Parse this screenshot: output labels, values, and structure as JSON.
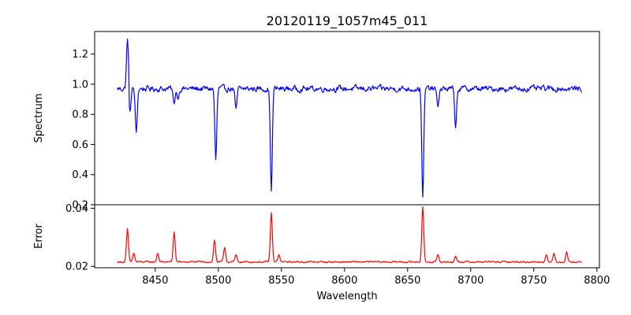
{
  "chart_data": [
    {
      "type": "line",
      "panel": "top",
      "title": "20120119_1057m45_011",
      "xlabel": "",
      "ylabel": "Spectrum",
      "xlim": [
        8402,
        8802
      ],
      "ylim": [
        0.2,
        1.35
      ],
      "yticks": [
        0.2,
        0.4,
        0.6,
        0.8,
        1.0,
        1.2
      ],
      "ytick_labels": [
        "0.2",
        "0.4",
        "0.6",
        "0.8",
        "1.0",
        "1.2"
      ],
      "grid": false,
      "series": [
        {
          "name": "Spectrum",
          "color": "#0000ff",
          "baseline": 0.97,
          "noise": 0.035,
          "x_range": [
            8420,
            8788
          ],
          "features": [
            {
              "x": 8428,
              "y": 1.3
            },
            {
              "x": 8430,
              "y": 0.82
            },
            {
              "x": 8435,
              "y": 0.68
            },
            {
              "x": 8465,
              "y": 0.87
            },
            {
              "x": 8468,
              "y": 0.9
            },
            {
              "x": 8498,
              "y": 0.5
            },
            {
              "x": 8514,
              "y": 0.84
            },
            {
              "x": 8542,
              "y": 0.29
            },
            {
              "x": 8662,
              "y": 0.25
            },
            {
              "x": 8674,
              "y": 0.85
            },
            {
              "x": 8688,
              "y": 0.71
            }
          ]
        }
      ]
    },
    {
      "type": "line",
      "panel": "bottom",
      "title": "",
      "xlabel": "Wavelength",
      "ylabel": "Error",
      "xlim": [
        8402,
        8802
      ],
      "ylim": [
        0.0195,
        0.0412
      ],
      "yticks": [
        0.02,
        0.04
      ],
      "ytick_labels": [
        "0.02",
        "0.04"
      ],
      "xticks": [
        8450,
        8500,
        8550,
        8600,
        8650,
        8700,
        8750,
        8800
      ],
      "xtick_labels": [
        "8450",
        "8500",
        "8550",
        "8600",
        "8650",
        "8700",
        "8750",
        "8800"
      ],
      "grid": false,
      "series": [
        {
          "name": "Error",
          "color": "#ff0000",
          "baseline": 0.0215,
          "noise": 0.0005,
          "x_range": [
            8420,
            8788
          ],
          "features": [
            {
              "x": 8428,
              "y": 0.033
            },
            {
              "x": 8433,
              "y": 0.0245
            },
            {
              "x": 8452,
              "y": 0.0245
            },
            {
              "x": 8465,
              "y": 0.0318
            },
            {
              "x": 8497,
              "y": 0.029
            },
            {
              "x": 8505,
              "y": 0.0265
            },
            {
              "x": 8514,
              "y": 0.024
            },
            {
              "x": 8542,
              "y": 0.0385
            },
            {
              "x": 8548,
              "y": 0.024
            },
            {
              "x": 8662,
              "y": 0.0405
            },
            {
              "x": 8674,
              "y": 0.024
            },
            {
              "x": 8688,
              "y": 0.0235
            },
            {
              "x": 8760,
              "y": 0.024
            },
            {
              "x": 8766,
              "y": 0.0245
            },
            {
              "x": 8776,
              "y": 0.025
            }
          ]
        }
      ]
    }
  ]
}
